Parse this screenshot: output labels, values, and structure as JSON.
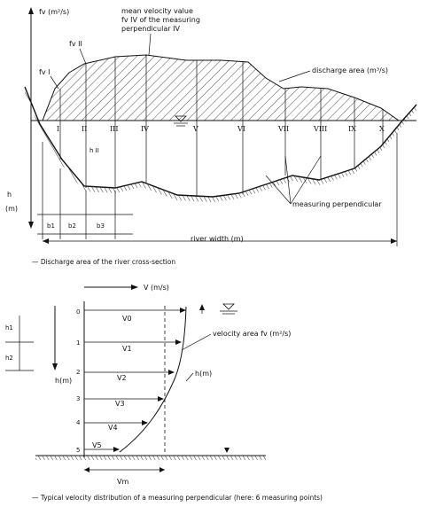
{
  "top": {
    "y_axis_label": "fv (m²/s)",
    "depth_axis_label": "h",
    "depth_axis_unit": "(m)",
    "mean_value_note": [
      "mean velocity value",
      "fv IV of the measuring",
      "perpendicular IV"
    ],
    "fv_ii": "fv II",
    "fv_i": "fv I",
    "discharge_area_label": "discharge area (m³/s)",
    "measuring_perpendicular_label": "measuring perpendicular",
    "river_width_label": "river width (m)",
    "bi_label": "h II",
    "perpendiculars": [
      "I",
      "II",
      "III",
      "IV",
      "V",
      "VI",
      "VII",
      "VIII",
      "IX",
      "X"
    ],
    "widths": [
      "b1",
      "b2",
      "b3"
    ],
    "caption": "— Discharge area of the river cross-section"
  },
  "bottom": {
    "v_axis_label": "V (m/s)",
    "depth_axis_label": "h(m)",
    "h_labels": [
      "h1",
      "h2"
    ],
    "points": [
      "0",
      "1",
      "2",
      "3",
      "4",
      "5"
    ],
    "velocities": [
      "V0",
      "V1",
      "V2",
      "V3",
      "V4",
      "V5"
    ],
    "velocity_area_label": "velocity area fv (m²/s)",
    "h_m_label": "h(m)",
    "vm_label": "Vm",
    "caption": "— Typical velocity distribution of a measuring perpendicular (here: 6 measuring points)"
  }
}
